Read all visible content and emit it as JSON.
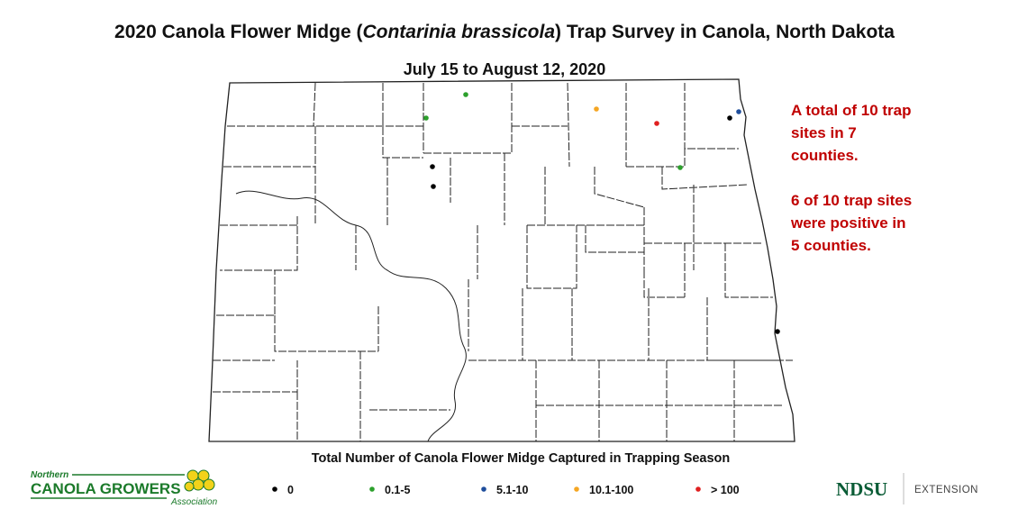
{
  "title": {
    "before": "2020 Canola Flower Midge (",
    "italic": "Contarinia brassicola",
    "after": ") Trap Survey in Canola, North Dakota"
  },
  "subtitle": "July 15 to August 12, 2020",
  "notes": [
    "A total of 10 trap",
    "sites in 7",
    "counties.",
    "6 of 10 trap sites",
    "were positive in",
    "5 counties."
  ],
  "legend": {
    "title": "Total Number of Canola Flower Midge Captured in Trapping Season",
    "items": [
      {
        "label": "0",
        "color": "#000000"
      },
      {
        "label": "0.1-5",
        "color": "#2ca02c"
      },
      {
        "label": "5.1-10",
        "color": "#1f4e9c"
      },
      {
        "label": "10.1-100",
        "color": "#f5a623"
      },
      {
        "label": "> 100",
        "color": "#e02020"
      }
    ]
  },
  "logos": {
    "left": {
      "top": "Northern",
      "main": "CANOLA GROWERS",
      "bottom": "Association"
    },
    "right": {
      "main": "NDSU",
      "sub": "EXTENSION"
    }
  }
}
